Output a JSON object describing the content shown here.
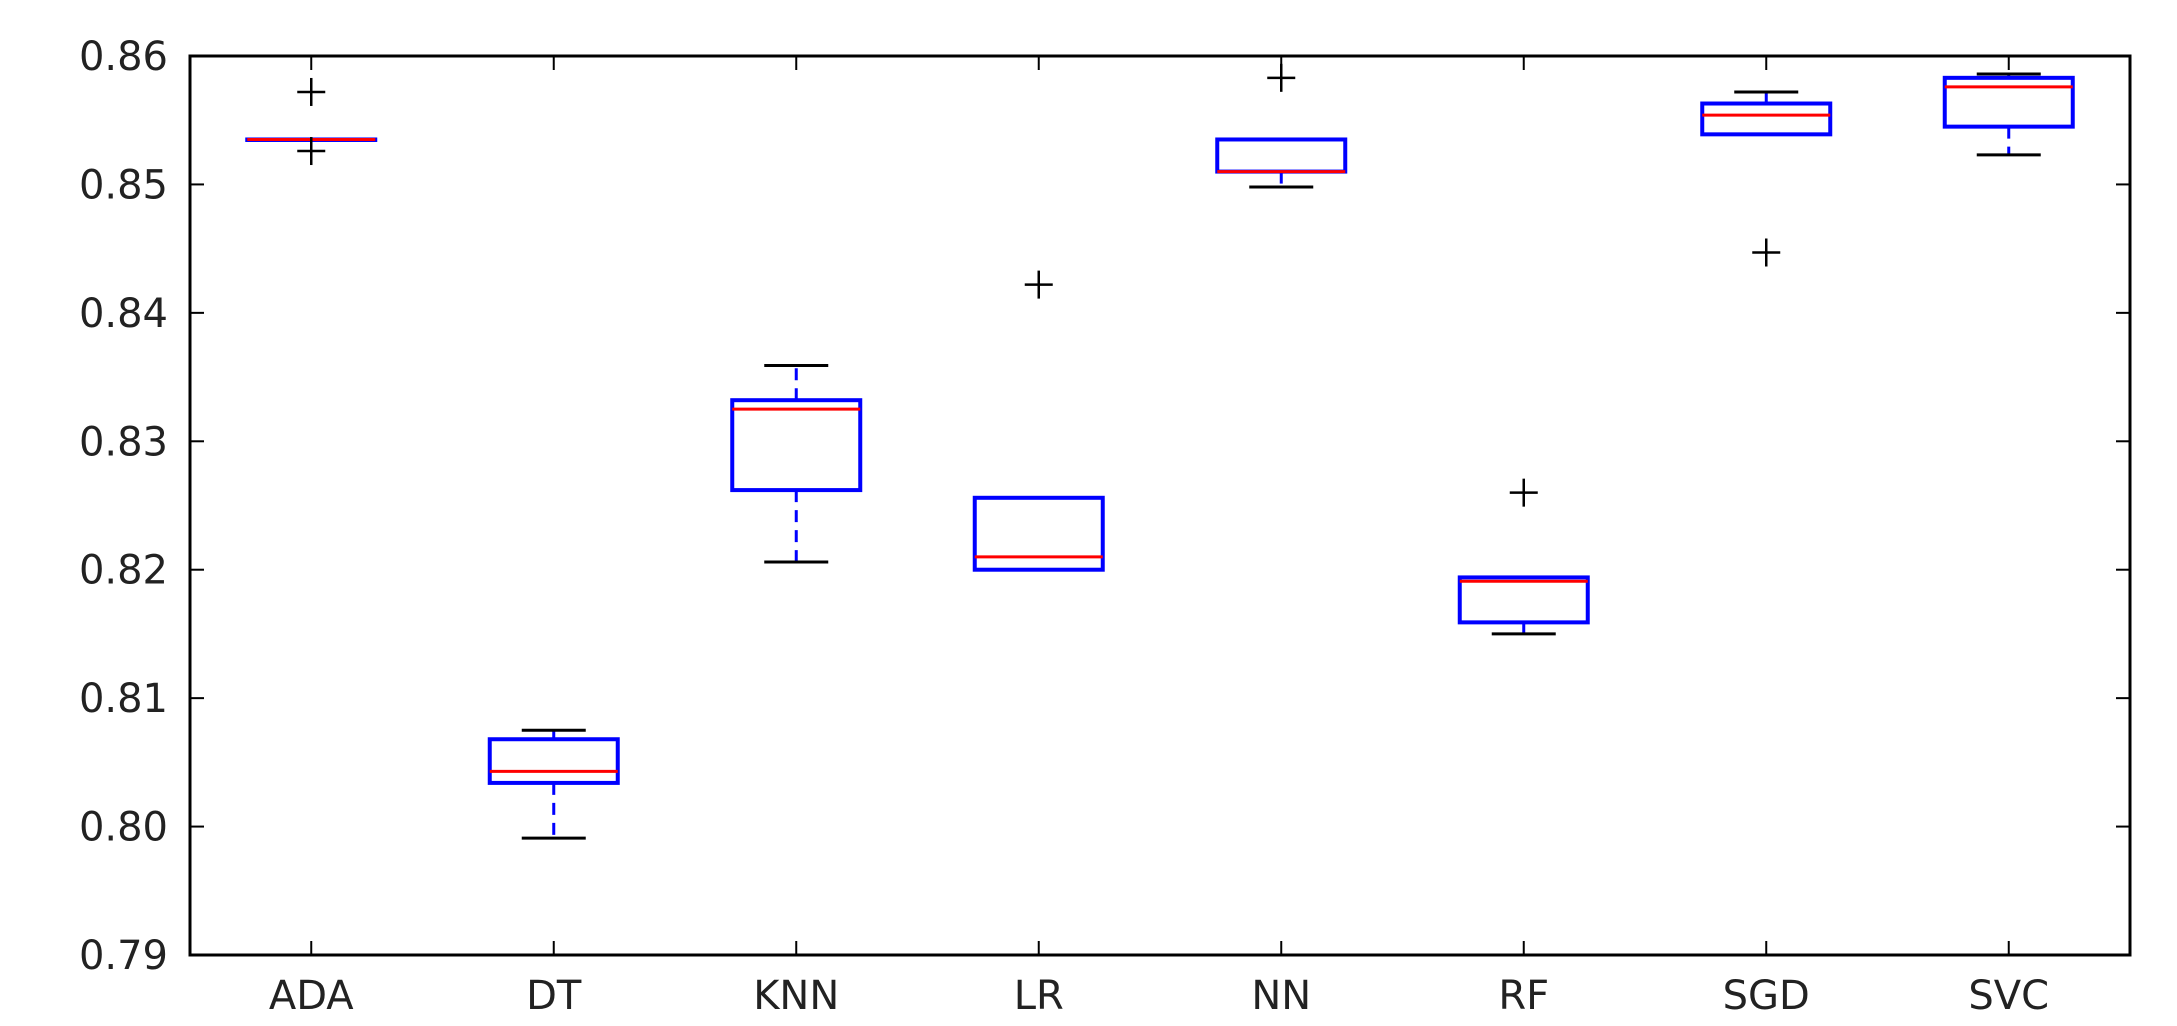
{
  "chart_data": {
    "type": "box",
    "title": "",
    "xlabel": "",
    "ylabel": "",
    "ylim": [
      0.79,
      0.86
    ],
    "yticks": [
      "0.79",
      "0.80",
      "0.81",
      "0.82",
      "0.83",
      "0.84",
      "0.85",
      "0.86"
    ],
    "ytick_values": [
      0.79,
      0.8,
      0.81,
      0.82,
      0.83,
      0.84,
      0.85,
      0.86
    ],
    "grid": false,
    "legend": "none",
    "colors": {
      "box": "#0000ff",
      "median": "#ff0000",
      "cap": "#000000",
      "flier": "#000000",
      "frame": "#000000"
    },
    "categories": [
      "ADA",
      "DT",
      "KNN",
      "LR",
      "NN",
      "RF",
      "SGD",
      "SVC"
    ],
    "boxes": [
      {
        "name": "ADA",
        "whisker_low": 0.8535,
        "q1": 0.8535,
        "median": 0.8535,
        "q3": 0.8535,
        "whisker_high": 0.8535,
        "fliers": [
          0.8572,
          0.8526
        ]
      },
      {
        "name": "DT",
        "whisker_low": 0.7991,
        "q1": 0.8034,
        "median": 0.8043,
        "q3": 0.8068,
        "whisker_high": 0.8075,
        "fliers": []
      },
      {
        "name": "KNN",
        "whisker_low": 0.8206,
        "q1": 0.8262,
        "median": 0.8325,
        "q3": 0.8332,
        "whisker_high": 0.8359,
        "fliers": []
      },
      {
        "name": "LR",
        "whisker_low": 0.82,
        "q1": 0.82,
        "median": 0.821,
        "q3": 0.8256,
        "whisker_high": 0.8256,
        "fliers": [
          0.8422
        ]
      },
      {
        "name": "NN",
        "whisker_low": 0.8498,
        "q1": 0.851,
        "median": 0.851,
        "q3": 0.8535,
        "whisker_high": 0.8535,
        "fliers": [
          0.8583
        ]
      },
      {
        "name": "RF",
        "whisker_low": 0.815,
        "q1": 0.8159,
        "median": 0.8191,
        "q3": 0.8194,
        "whisker_high": 0.8194,
        "fliers": [
          0.826
        ]
      },
      {
        "name": "SGD",
        "whisker_low": 0.8539,
        "q1": 0.8539,
        "median": 0.8554,
        "q3": 0.8563,
        "whisker_high": 0.8572,
        "fliers": [
          0.8447
        ]
      },
      {
        "name": "SVC",
        "whisker_low": 0.8523,
        "q1": 0.8545,
        "median": 0.8576,
        "q3": 0.8583,
        "whisker_high": 0.8586,
        "fliers": []
      }
    ]
  }
}
